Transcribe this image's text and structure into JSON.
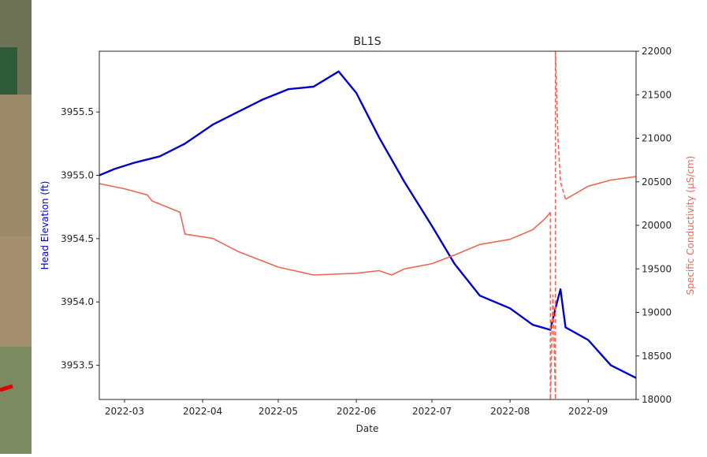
{
  "chart_data": {
    "type": "line",
    "title": "BL1S",
    "xlabel": "Date",
    "ylabel_left": "Head Elevation (ft)",
    "ylabel_right": "Specific Conductivity (µS/cm)",
    "xlim": [
      "2022-02-19",
      "2022-09-20"
    ],
    "ylim_left": [
      3953.23,
      3955.98
    ],
    "ylim_right": [
      18000,
      22000
    ],
    "x_ticks": [
      "2022-03",
      "2022-04",
      "2022-05",
      "2022-06",
      "2022-07",
      "2022-08",
      "2022-09"
    ],
    "y_ticks_left": [
      "3953.5",
      "3954.0",
      "3954.5",
      "3955.0",
      "3955.5"
    ],
    "y_ticks_right": [
      "18000",
      "18500",
      "19000",
      "19500",
      "20000",
      "20500",
      "21000",
      "21500",
      "22000"
    ],
    "colors": {
      "head": "#0000cc",
      "conductivity": "#ee6655",
      "left_label": "#0000cc",
      "right_label": "#ee6655"
    },
    "grid": false,
    "legend": "none",
    "series": [
      {
        "axis": "left",
        "style": "solid",
        "x": [
          "2022-02-19",
          "2022-02-25",
          "2022-03-05",
          "2022-03-15",
          "2022-03-25",
          "2022-04-05",
          "2022-04-15",
          "2022-04-25",
          "2022-05-05",
          "2022-05-15",
          "2022-05-25",
          "2022-06-01",
          "2022-06-10",
          "2022-06-20",
          "2022-07-01",
          "2022-07-10",
          "2022-07-20",
          "2022-08-01",
          "2022-08-10",
          "2022-08-17",
          "2022-08-19",
          "2022-08-21",
          "2022-08-23",
          "2022-09-01",
          "2022-09-10",
          "2022-09-20"
        ],
        "y": [
          3955.0,
          3955.05,
          3955.1,
          3955.15,
          3955.25,
          3955.4,
          3955.5,
          3955.6,
          3955.68,
          3955.7,
          3955.82,
          3955.65,
          3955.3,
          3954.95,
          3954.6,
          3954.3,
          3954.05,
          3953.95,
          3953.82,
          3953.78,
          3953.95,
          3954.1,
          3953.8,
          3953.7,
          3953.5,
          3953.4
        ]
      },
      {
        "axis": "right",
        "style": "solid",
        "x": [
          "2022-02-19",
          "2022-03-01",
          "2022-03-10",
          "2022-03-12",
          "2022-03-23",
          "2022-03-25",
          "2022-04-05",
          "2022-04-15",
          "2022-05-01",
          "2022-05-15",
          "2022-06-01",
          "2022-06-10",
          "2022-06-15",
          "2022-06-20",
          "2022-07-01",
          "2022-07-10",
          "2022-07-20",
          "2022-08-01",
          "2022-08-10",
          "2022-08-15",
          "2022-08-17"
        ],
        "y": [
          20480,
          20420,
          20350,
          20280,
          20150,
          19900,
          19850,
          19700,
          19520,
          19430,
          19450,
          19480,
          19430,
          19500,
          19560,
          19660,
          19780,
          19840,
          19950,
          20080,
          20150
        ]
      },
      {
        "axis": "right",
        "style": "dashed",
        "x": [
          "2022-08-17",
          "2022-08-17",
          "2022-08-18",
          "2022-08-19",
          "2022-08-19",
          "2022-08-20",
          "2022-08-21",
          "2022-08-23"
        ],
        "y": [
          20150,
          18000,
          19200,
          18000,
          22000,
          21000,
          20500,
          20300
        ]
      },
      {
        "axis": "right",
        "style": "solid",
        "x": [
          "2022-08-23",
          "2022-09-01",
          "2022-09-10",
          "2022-09-20"
        ],
        "y": [
          20300,
          20450,
          20520,
          20560
        ]
      }
    ]
  }
}
